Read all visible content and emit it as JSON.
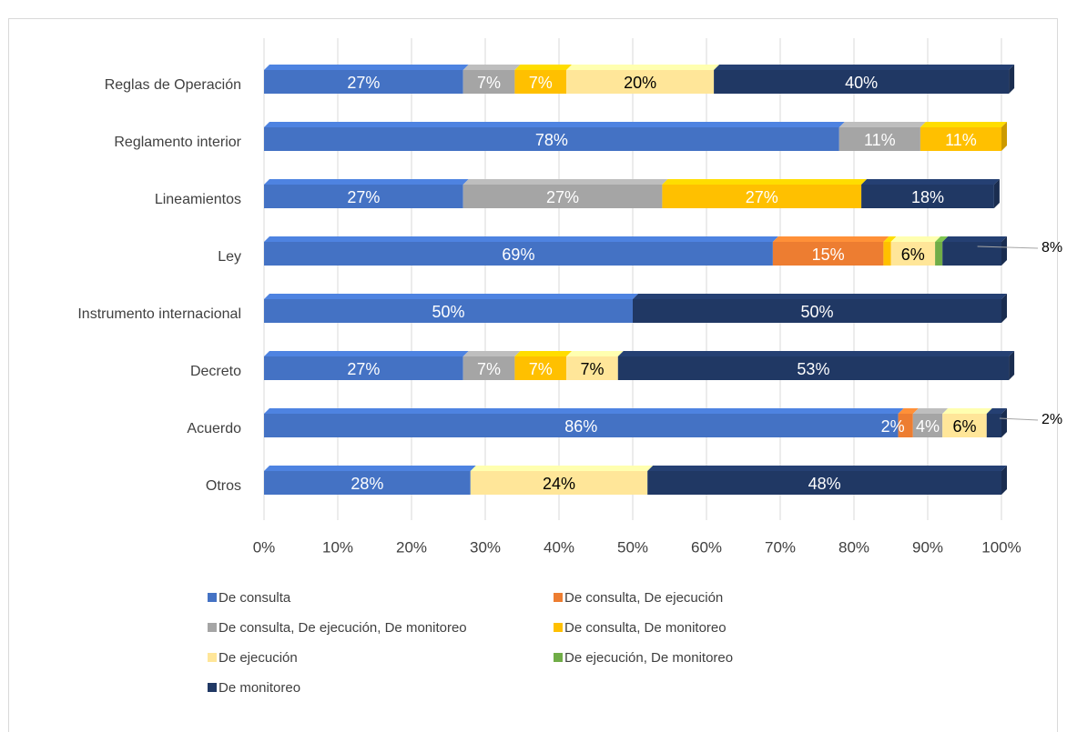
{
  "chart_data": {
    "type": "stacked_barh",
    "categories": [
      "Reglas de Operación",
      "Reglamento interior",
      "Lineamientos",
      "Ley",
      "Instrumento internacional",
      "Decreto",
      "Acuerdo",
      "Otros"
    ],
    "series": [
      {
        "name": "De consulta",
        "color": "#4472c4",
        "label_color": "#ffffff",
        "values": [
          27,
          78,
          27,
          69,
          50,
          27,
          86,
          28
        ],
        "value_labels": [
          "27%",
          "78%",
          "27%",
          "69%",
          "50%",
          "27%",
          "86%",
          "28%"
        ]
      },
      {
        "name": "De consulta, De ejecución",
        "color": "#ed7d31",
        "label_color": "#ffffff",
        "values": [
          null,
          null,
          null,
          15,
          null,
          null,
          2,
          null
        ],
        "value_labels": [
          null,
          null,
          null,
          "15%",
          null,
          null,
          "2%",
          null
        ]
      },
      {
        "name": "De consulta, De ejecución, De monitoreo",
        "color": "#a5a5a5",
        "label_color": "#ffffff",
        "values": [
          7,
          11,
          27,
          null,
          null,
          7,
          4,
          null
        ],
        "value_labels": [
          "7%",
          "11%",
          "27%",
          null,
          null,
          "7%",
          "4%",
          null
        ]
      },
      {
        "name": "De consulta, De monitoreo",
        "color": "#ffc000",
        "label_color": "#ffffff",
        "values": [
          7,
          11,
          27,
          1,
          null,
          7,
          null,
          null
        ],
        "value_labels": [
          "7%",
          "11%",
          "27%",
          null,
          null,
          "7%",
          null,
          null
        ]
      },
      {
        "name": "De ejecución",
        "color": "#ffe699",
        "label_color": "#000000",
        "values": [
          20,
          null,
          null,
          6,
          null,
          7,
          6,
          24
        ],
        "value_labels": [
          "20%",
          null,
          null,
          "6%",
          null,
          "7%",
          "6%",
          "24%"
        ]
      },
      {
        "name": "De ejecución, De monitoreo",
        "color": "#70ad47",
        "label_color": "#ffffff",
        "values": [
          null,
          null,
          null,
          1,
          null,
          null,
          null,
          null
        ],
        "value_labels": [
          null,
          null,
          null,
          "1%",
          null,
          null,
          null,
          null
        ]
      },
      {
        "name": "De monitoreo",
        "color": "#203864",
        "label_color": "#ffffff",
        "values": [
          40,
          null,
          18,
          8,
          50,
          53,
          2,
          48
        ],
        "value_labels": [
          "40%",
          null,
          "18%",
          "8%",
          "50%",
          "53%",
          "2%",
          "48%"
        ]
      }
    ],
    "xlim": [
      0,
      100
    ],
    "xticks": [
      {
        "value": 0,
        "label": "0%"
      },
      {
        "value": 10,
        "label": "10%"
      },
      {
        "value": 20,
        "label": "20%"
      },
      {
        "value": 30,
        "label": "30%"
      },
      {
        "value": 40,
        "label": "40%"
      },
      {
        "value": 50,
        "label": "50%"
      },
      {
        "value": 60,
        "label": "60%"
      },
      {
        "value": 70,
        "label": "70%"
      },
      {
        "value": 80,
        "label": "80%"
      },
      {
        "value": 90,
        "label": "90%"
      },
      {
        "value": 100,
        "label": "100%"
      }
    ],
    "grid": true,
    "legend": "bottom"
  }
}
